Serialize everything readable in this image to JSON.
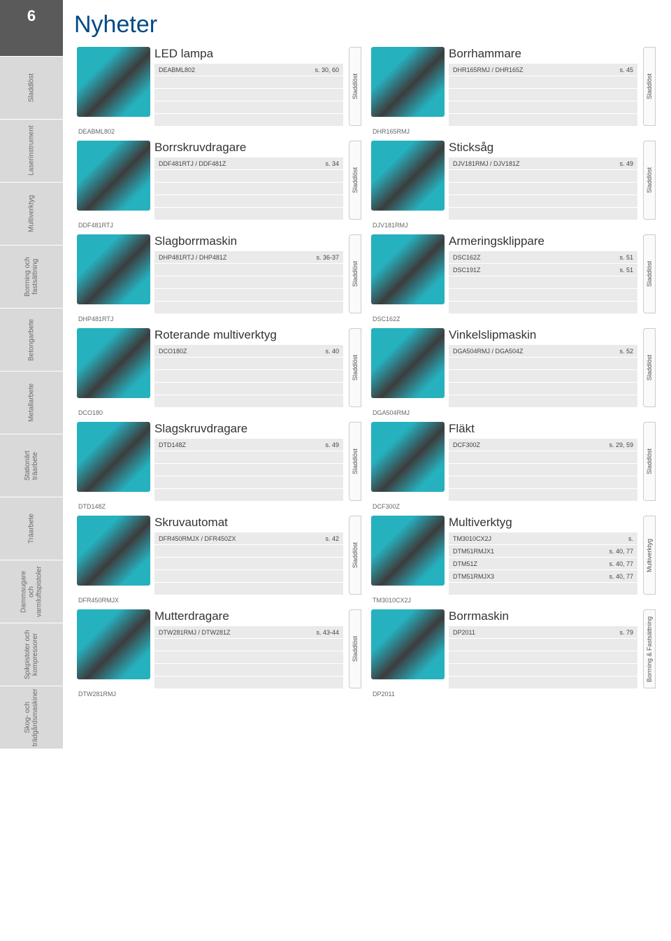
{
  "page_number": "6",
  "page_title": "Nyheter",
  "side_tabs": [
    "Sladdlöst",
    "Laserinstrument",
    "Multiverktyg",
    "Borrning och fastsättning",
    "Betongarbete",
    "Metallarbete",
    "Stationärt träarbete",
    "Träarbete",
    "Dammsugare och varmluftspistoler",
    "Spikpistoler och kompressorer",
    "Skog- och trädgårdsmaskiner"
  ],
  "colors": {
    "accent": "#004a87",
    "tool_teal": "#00a3b4",
    "row_bg": "#eaeaea",
    "side_bg": "#d9d9d9",
    "pagenum_bg": "#5a5a5a"
  },
  "cards": [
    {
      "title": "LED lampa",
      "rows": [
        [
          "DEABML802",
          "s. 30, 60"
        ]
      ],
      "vtab": "Sladdlöst",
      "id": "DEABML802"
    },
    {
      "title": "Borrhammare",
      "rows": [
        [
          "DHR165RMJ / DHR165Z",
          "s. 45"
        ]
      ],
      "vtab": "Sladdlöst",
      "id": "DHR165RMJ"
    },
    {
      "title": "Borrskruvdragare",
      "rows": [
        [
          "DDF481RTJ / DDF481Z",
          "s. 34"
        ]
      ],
      "vtab": "Sladdlöst",
      "id": "DDF481RTJ"
    },
    {
      "title": "Sticksåg",
      "rows": [
        [
          "DJV181RMJ / DJV181Z",
          "s. 49"
        ]
      ],
      "vtab": "Sladdlöst",
      "id": "DJV181RMJ"
    },
    {
      "title": "Slagborrmaskin",
      "rows": [
        [
          "DHP481RTJ / DHP481Z",
          "s. 36-37"
        ]
      ],
      "vtab": "Sladdlöst",
      "id": "DHP481RTJ"
    },
    {
      "title": "Armeringsklippare",
      "rows": [
        [
          "DSC162Z",
          "s. 51"
        ],
        [
          "DSC191Z",
          "s. 51"
        ]
      ],
      "vtab": "Sladdlöst",
      "id": "DSC162Z"
    },
    {
      "title": "Roterande multiverktyg",
      "rows": [
        [
          "DCO180Z",
          "s. 40"
        ]
      ],
      "vtab": "Sladdlöst",
      "id": "DCO180"
    },
    {
      "title": "Vinkelslipmaskin",
      "rows": [
        [
          "DGA504RMJ / DGA504Z",
          "s. 52"
        ]
      ],
      "vtab": "Sladdlöst",
      "id": "DGA504RMJ"
    },
    {
      "title": "Slagskruvdragare",
      "rows": [
        [
          "DTD148Z",
          "s. 49"
        ]
      ],
      "vtab": "Sladdlöst",
      "id": "DTD148Z"
    },
    {
      "title": "Fläkt",
      "rows": [
        [
          "DCF300Z",
          "s. 29, 59"
        ]
      ],
      "vtab": "Sladdlöst",
      "id": "DCF300Z"
    },
    {
      "title": "Skruvautomat",
      "rows": [
        [
          "DFR450RMJX / DFR450ZX",
          "s. 42"
        ]
      ],
      "vtab": "Sladdlöst",
      "id": "DFR450RMJX"
    },
    {
      "title": "Multiverktyg",
      "rows": [
        [
          "TM3010CX2J",
          "s."
        ],
        [
          "DTM51RMJX1",
          "s. 40, 77"
        ],
        [
          "DTM51Z",
          "s. 40, 77"
        ],
        [
          "DTM51RMJX3",
          "s. 40, 77"
        ]
      ],
      "vtab": "Multiverktyg",
      "id": "TM3010CX2J"
    },
    {
      "title": "Mutterdragare",
      "rows": [
        [
          "DTW281RMJ / DTW281Z",
          "s. 43-44"
        ]
      ],
      "vtab": "Sladdlöst",
      "id": "DTW281RMJ"
    },
    {
      "title": "Borrmaskin",
      "rows": [
        [
          "DP2011",
          "s. 79"
        ]
      ],
      "vtab": "Borrning & Fastsättning",
      "id": "DP2011"
    }
  ],
  "row_slots": 5
}
